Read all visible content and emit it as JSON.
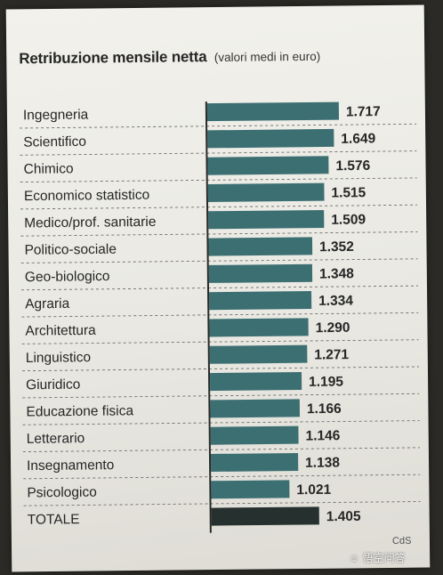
{
  "chart_data": {
    "type": "bar",
    "orientation": "horizontal",
    "title": "Retribuzione mensile netta",
    "subtitle": "(valori medi in euro)",
    "categories": [
      "Ingegneria",
      "Scientifico",
      "Chimico",
      "Economico statistico",
      "Medico/prof. sanitarie",
      "Politico-sociale",
      "Geo-biologico",
      "Agraria",
      "Architettura",
      "Linguistico",
      "Giuridico",
      "Educazione fisica",
      "Letterario",
      "Insegnamento",
      "Psicologico",
      "TOTALE"
    ],
    "values": [
      1717,
      1649,
      1576,
      1515,
      1509,
      1352,
      1348,
      1334,
      1290,
      1271,
      1195,
      1166,
      1146,
      1138,
      1021,
      1405
    ],
    "value_labels": [
      "1.717",
      "1.649",
      "1.576",
      "1.515",
      "1.509",
      "1.352",
      "1.348",
      "1.334",
      "1.290",
      "1.271",
      "1.195",
      "1.166",
      "1.146",
      "1.138",
      "1.021",
      "1.405"
    ],
    "xlim": [
      0,
      1717
    ],
    "grid": false,
    "legend": "none"
  },
  "colors": {
    "bar": "#3c6f72",
    "total_bar": "#26302f",
    "text": "#262626"
  },
  "source_credit": "CdS",
  "watermark_text": "悟空问答"
}
